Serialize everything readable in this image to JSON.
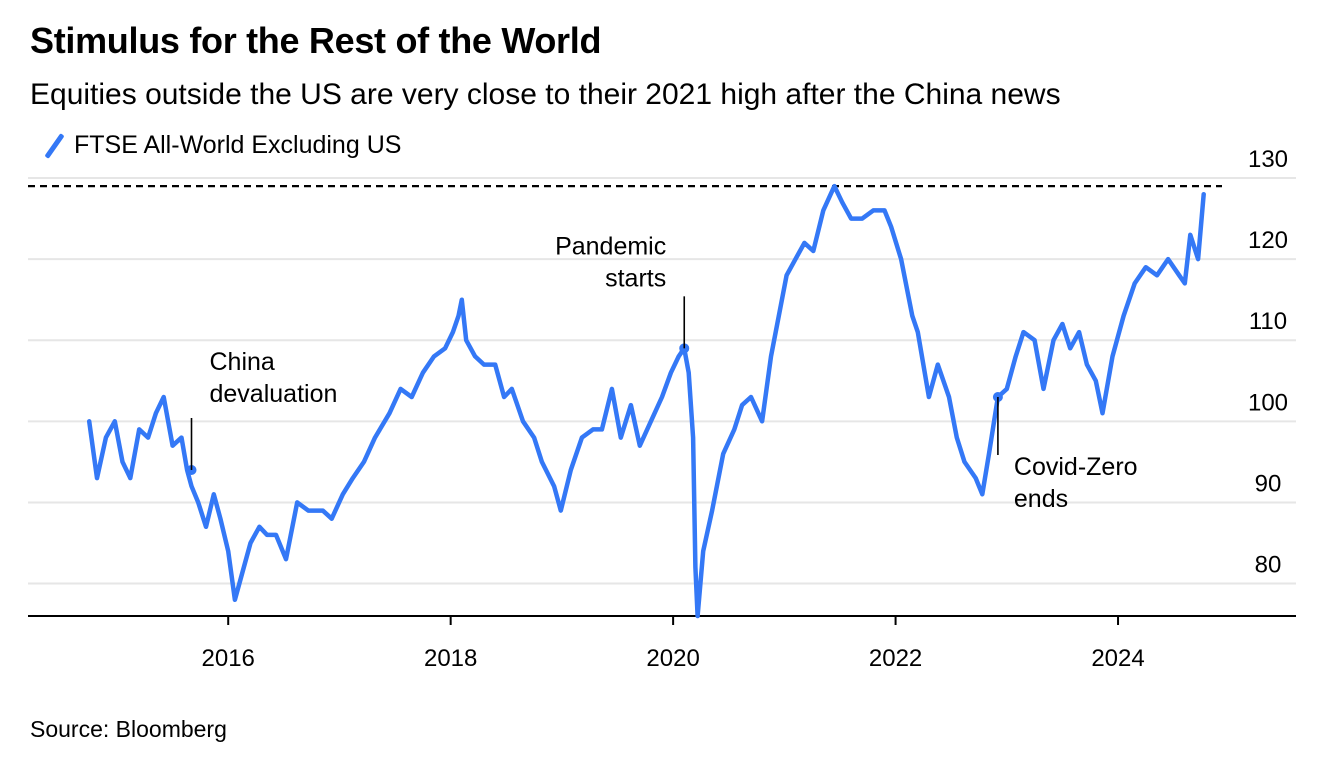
{
  "chart_data": {
    "type": "line",
    "title": "Stimulus for the Rest of the World",
    "subtitle": "Equities outside the US are very close to their 2021 high after the China news",
    "source": "Source: Bloomberg",
    "series": [
      {
        "name": "FTSE All-World Excluding US",
        "color": "#3478f6",
        "points": [
          [
            2014.75,
            100
          ],
          [
            2014.82,
            93
          ],
          [
            2014.9,
            98
          ],
          [
            2014.98,
            100
          ],
          [
            2015.05,
            95
          ],
          [
            2015.12,
            93
          ],
          [
            2015.2,
            99
          ],
          [
            2015.28,
            98
          ],
          [
            2015.35,
            101
          ],
          [
            2015.42,
            103
          ],
          [
            2015.5,
            97
          ],
          [
            2015.58,
            98
          ],
          [
            2015.63,
            94
          ],
          [
            2015.67,
            92
          ],
          [
            2015.73,
            90
          ],
          [
            2015.8,
            87
          ],
          [
            2015.87,
            91
          ],
          [
            2015.93,
            88
          ],
          [
            2016.0,
            84
          ],
          [
            2016.06,
            78
          ],
          [
            2016.12,
            81
          ],
          [
            2016.2,
            85
          ],
          [
            2016.28,
            87
          ],
          [
            2016.35,
            86
          ],
          [
            2016.43,
            86
          ],
          [
            2016.52,
            83
          ],
          [
            2016.62,
            90
          ],
          [
            2016.72,
            89
          ],
          [
            2016.85,
            89
          ],
          [
            2016.93,
            88
          ],
          [
            2017.03,
            91
          ],
          [
            2017.12,
            93
          ],
          [
            2017.22,
            95
          ],
          [
            2017.32,
            98
          ],
          [
            2017.45,
            101
          ],
          [
            2017.55,
            104
          ],
          [
            2017.65,
            103
          ],
          [
            2017.75,
            106
          ],
          [
            2017.85,
            108
          ],
          [
            2017.95,
            109
          ],
          [
            2018.02,
            111
          ],
          [
            2018.07,
            113
          ],
          [
            2018.1,
            115
          ],
          [
            2018.14,
            110
          ],
          [
            2018.22,
            108
          ],
          [
            2018.3,
            107
          ],
          [
            2018.4,
            107
          ],
          [
            2018.48,
            103
          ],
          [
            2018.55,
            104
          ],
          [
            2018.65,
            100
          ],
          [
            2018.75,
            98
          ],
          [
            2018.82,
            95
          ],
          [
            2018.93,
            92
          ],
          [
            2018.99,
            89
          ],
          [
            2019.08,
            94
          ],
          [
            2019.18,
            98
          ],
          [
            2019.28,
            99
          ],
          [
            2019.36,
            99
          ],
          [
            2019.45,
            104
          ],
          [
            2019.53,
            98
          ],
          [
            2019.62,
            102
          ],
          [
            2019.7,
            97
          ],
          [
            2019.8,
            100
          ],
          [
            2019.9,
            103
          ],
          [
            2019.98,
            106
          ],
          [
            2020.05,
            108
          ],
          [
            2020.1,
            109
          ],
          [
            2020.14,
            106
          ],
          [
            2020.18,
            98
          ],
          [
            2020.2,
            82
          ],
          [
            2020.22,
            76
          ],
          [
            2020.27,
            84
          ],
          [
            2020.35,
            89
          ],
          [
            2020.45,
            96
          ],
          [
            2020.55,
            99
          ],
          [
            2020.62,
            102
          ],
          [
            2020.7,
            103
          ],
          [
            2020.8,
            100
          ],
          [
            2020.88,
            108
          ],
          [
            2020.95,
            113
          ],
          [
            2021.02,
            118
          ],
          [
            2021.1,
            120
          ],
          [
            2021.18,
            122
          ],
          [
            2021.26,
            121
          ],
          [
            2021.35,
            126
          ],
          [
            2021.45,
            129
          ],
          [
            2021.52,
            127
          ],
          [
            2021.6,
            125
          ],
          [
            2021.7,
            125
          ],
          [
            2021.8,
            126
          ],
          [
            2021.9,
            126
          ],
          [
            2021.96,
            124
          ],
          [
            2022.05,
            120
          ],
          [
            2022.15,
            113
          ],
          [
            2022.2,
            111
          ],
          [
            2022.3,
            103
          ],
          [
            2022.38,
            107
          ],
          [
            2022.48,
            103
          ],
          [
            2022.55,
            98
          ],
          [
            2022.62,
            95
          ],
          [
            2022.72,
            93
          ],
          [
            2022.78,
            91
          ],
          [
            2022.84,
            96
          ],
          [
            2022.92,
            103
          ],
          [
            2023.0,
            104
          ],
          [
            2023.08,
            108
          ],
          [
            2023.15,
            111
          ],
          [
            2023.25,
            110
          ],
          [
            2023.33,
            104
          ],
          [
            2023.42,
            110
          ],
          [
            2023.5,
            112
          ],
          [
            2023.57,
            109
          ],
          [
            2023.65,
            111
          ],
          [
            2023.72,
            107
          ],
          [
            2023.8,
            105
          ],
          [
            2023.86,
            101
          ],
          [
            2023.95,
            108
          ],
          [
            2024.05,
            113
          ],
          [
            2024.15,
            117
          ],
          [
            2024.25,
            119
          ],
          [
            2024.35,
            118
          ],
          [
            2024.45,
            120
          ],
          [
            2024.55,
            118
          ],
          [
            2024.6,
            117
          ],
          [
            2024.65,
            123
          ],
          [
            2024.72,
            120
          ],
          [
            2024.77,
            128
          ]
        ]
      }
    ],
    "x_ticks": [
      "2016",
      "2018",
      "2020",
      "2022",
      "2024"
    ],
    "y_ticks": [
      "80",
      "90",
      "100",
      "110",
      "120",
      "130"
    ],
    "xlim": [
      2014.2,
      2025.6
    ],
    "ylim": [
      76,
      130
    ],
    "reference_line": {
      "value": 129,
      "style": "dashed",
      "color": "#000000"
    },
    "annotations": [
      {
        "lines": [
          "China",
          "devaluation"
        ],
        "x": 2015.67,
        "y": 94
      },
      {
        "lines": [
          "Pandemic",
          "starts"
        ],
        "x": 2020.1,
        "y": 109
      },
      {
        "lines": [
          "Covid-Zero",
          "ends"
        ],
        "x": 2022.92,
        "y": 103
      }
    ],
    "grid": true,
    "legend_position": "top-left"
  }
}
